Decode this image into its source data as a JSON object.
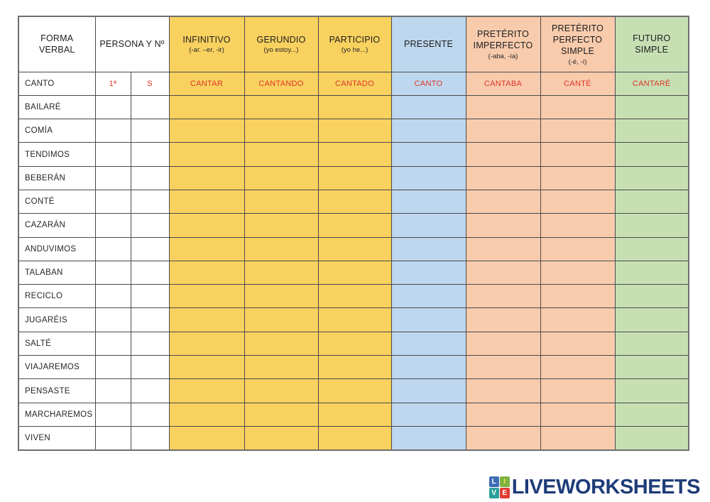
{
  "table": {
    "header": {
      "forma_verbal": "FORMA VERBAL",
      "persona_numero": "PERSONA Y Nº"
    },
    "columns": [
      {
        "title": "INFINITIVO",
        "sub": "(-ar. –er, -ir)",
        "color": "#F8D15F"
      },
      {
        "title": "GERUNDIO",
        "sub": "(yo estoy...)",
        "color": "#F8D15F"
      },
      {
        "title": "PARTICIPIO",
        "sub": "(yo he...)",
        "color": "#F8D15F"
      },
      {
        "title": "PRESENTE",
        "sub": "",
        "color": "#BDD7EE"
      },
      {
        "title": "PRETÉRITO IMPERFECTO",
        "sub": "(-aba, -ía)",
        "color": "#F8CBAD"
      },
      {
        "title": "PRETÉRITO PERFECTO SIMPLE",
        "sub": "(-é, -í)",
        "color": "#F8CBAD"
      },
      {
        "title": "FUTURO SIMPLE",
        "sub": "",
        "color": "#C6E0B4"
      }
    ],
    "example_row": {
      "forma": "CANTO",
      "persona": "1ª",
      "numero": "S",
      "answers": [
        "CANTAR",
        "CANTANDO",
        "CANTADO",
        "CANTO",
        "CANTABA",
        "CANTÉ",
        "CANTARÉ"
      ]
    },
    "rows": [
      "BAILARÉ",
      "COMÍA",
      "TENDIMOS",
      "BEBERÁN",
      "CONTÉ",
      "CAZARÁN",
      "ANDUVIMOS",
      "TALABAN",
      "RECICLO",
      "JUGARÉIS",
      "SALTÉ",
      "VIAJAREMOS",
      "PENSASTE",
      "MARCHAREMOS",
      "VIVEN"
    ],
    "accent_colors": {
      "example_text": "#E0352A",
      "yellow": "#F8D15F",
      "blue": "#BDD7EE",
      "orange": "#F8CBAD",
      "green": "#C6E0B4"
    }
  },
  "footer": {
    "logo_text": "LIVEWORKSHEETS",
    "logo_text_color": "#1e3c78",
    "tiles": [
      {
        "letter": "L",
        "color": "#3f6db5",
        "text_color": "#ffffff"
      },
      {
        "letter": "I",
        "color": "#7cb342",
        "text_color": "#ffe24a"
      },
      {
        "letter": "V",
        "color": "#2aa198",
        "text_color": "#ffffff"
      },
      {
        "letter": "E",
        "color": "#e23c32",
        "text_color": "#ffffff"
      }
    ]
  }
}
